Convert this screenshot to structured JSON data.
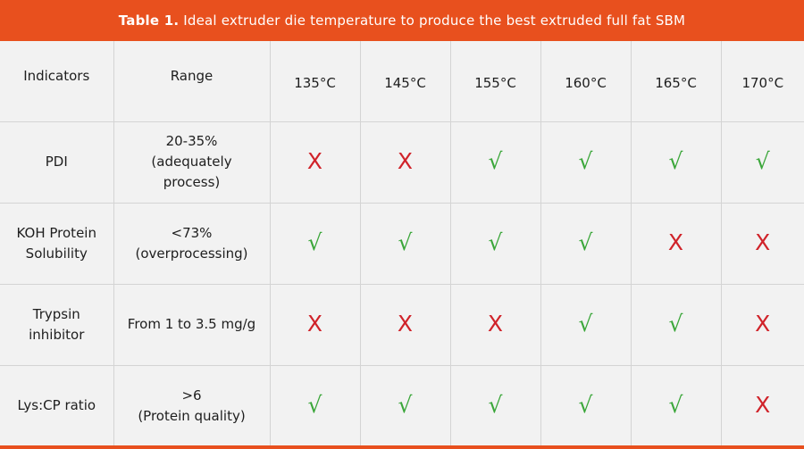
{
  "title": {
    "bold": "Table 1.",
    "text": "Ideal extruder die temperature to produce the best extruded full fat SBM"
  },
  "header": {
    "indicators": "Indicators",
    "range": "Range",
    "temperatures": [
      "135°C",
      "145°C",
      "155°C",
      "160°C",
      "165°C",
      "170°C"
    ]
  },
  "rows": [
    {
      "indicator": "PDI",
      "range_lines": [
        "20-35%",
        "(adequately",
        "process)"
      ],
      "marks": [
        "x",
        "x",
        "check",
        "check",
        "check",
        "check"
      ]
    },
    {
      "indicator_lines": [
        "KOH Protein",
        "Solubility"
      ],
      "range_lines": [
        "<73%",
        "(overprocessing)"
      ],
      "marks": [
        "check",
        "check",
        "check",
        "check",
        "x",
        "x"
      ]
    },
    {
      "indicator_lines": [
        "Trypsin",
        "inhibitor"
      ],
      "range_lines": [
        "From 1 to 3.5 mg/g"
      ],
      "marks": [
        "x",
        "x",
        "x",
        "check",
        "check",
        "x"
      ]
    },
    {
      "indicator": "Lys:CP ratio",
      "range_lines": [
        ">6",
        "(Protein quality)"
      ],
      "marks": [
        "check",
        "check",
        "check",
        "check",
        "check",
        "x"
      ]
    }
  ],
  "symbols": {
    "x": "X",
    "check": "√"
  },
  "colors": {
    "accent": "#e8501e",
    "x": "#d0232a",
    "check": "#3aa639"
  }
}
